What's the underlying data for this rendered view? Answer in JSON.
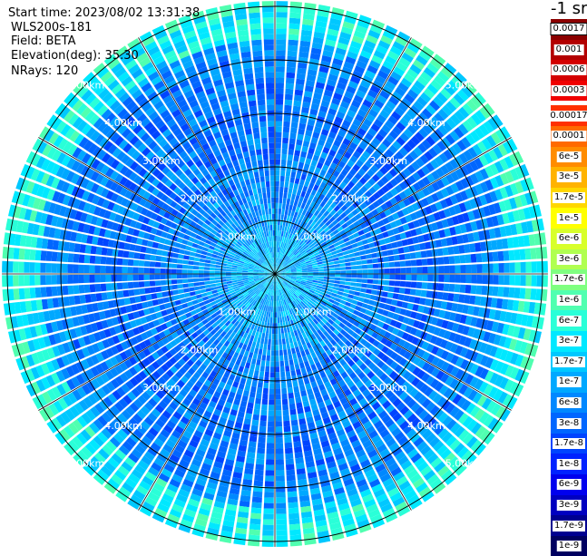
{
  "header": {
    "start_time": "Start time: 2023/08/02 13:31:38",
    "instrument": "WLS200s-181",
    "field": "Field: BETA",
    "elevation": "Elevation(deg): 35.30",
    "nrays": "NRays: 120"
  },
  "colorbar": {
    "unit": "-1 sr",
    "bins": [
      {
        "label": "0.0017",
        "color": "#8b0000"
      },
      {
        "label": "0.001",
        "color": "#b30000"
      },
      {
        "label": "0.0006",
        "color": "#d40000"
      },
      {
        "label": "0.0003",
        "color": "#f00000"
      },
      {
        "label": "0.00017",
        "color": "#ff3000"
      },
      {
        "label": "0.0001",
        "color": "#ff6a00"
      },
      {
        "label": "6e-5",
        "color": "#ff8c00"
      },
      {
        "label": "3e-5",
        "color": "#ffb300"
      },
      {
        "label": "1.7e-5",
        "color": "#ffd700"
      },
      {
        "label": "1e-5",
        "color": "#ffff00"
      },
      {
        "label": "6e-6",
        "color": "#d8ff2a"
      },
      {
        "label": "3e-6",
        "color": "#b0ff50"
      },
      {
        "label": "1.7e-6",
        "color": "#7fff80"
      },
      {
        "label": "1e-6",
        "color": "#50ffb0"
      },
      {
        "label": "6e-7",
        "color": "#2affd8"
      },
      {
        "label": "3e-7",
        "color": "#00e8ff"
      },
      {
        "label": "1.7e-7",
        "color": "#00c8ff"
      },
      {
        "label": "1e-7",
        "color": "#00a8ff"
      },
      {
        "label": "6e-8",
        "color": "#0088ff"
      },
      {
        "label": "3e-8",
        "color": "#0066ff"
      },
      {
        "label": "1.7e-8",
        "color": "#0044ff"
      },
      {
        "label": "1e-8",
        "color": "#0022ff"
      },
      {
        "label": "6e-9",
        "color": "#0000ee"
      },
      {
        "label": "3e-9",
        "color": "#0000c0"
      },
      {
        "label": "1.7e-9",
        "color": "#000090"
      },
      {
        "label": "1e-9",
        "color": "#000060"
      }
    ]
  },
  "chart_data": {
    "type": "heatmap",
    "projection": "polar",
    "field": "BETA",
    "nrays": 120,
    "range_rings_km": [
      1,
      2,
      3,
      4,
      5
    ],
    "ring_labels": [
      "1.00km",
      "2.00km",
      "3.00km",
      "4.00km",
      "5.00km"
    ],
    "max_range_km": 5.1,
    "spoke_angles_deg": [
      0,
      30,
      60,
      90,
      120,
      150,
      180,
      210,
      240,
      270,
      300,
      330
    ],
    "typical_range_bins": [
      "1e-8",
      "1.7e-8",
      "3e-8",
      "6e-8",
      "1e-7",
      "1.7e-7",
      "3e-7",
      "6e-7",
      "1e-6",
      "1.7e-6"
    ],
    "colors": {
      "ring": "#000000",
      "ring_label": "#ffffff"
    }
  }
}
